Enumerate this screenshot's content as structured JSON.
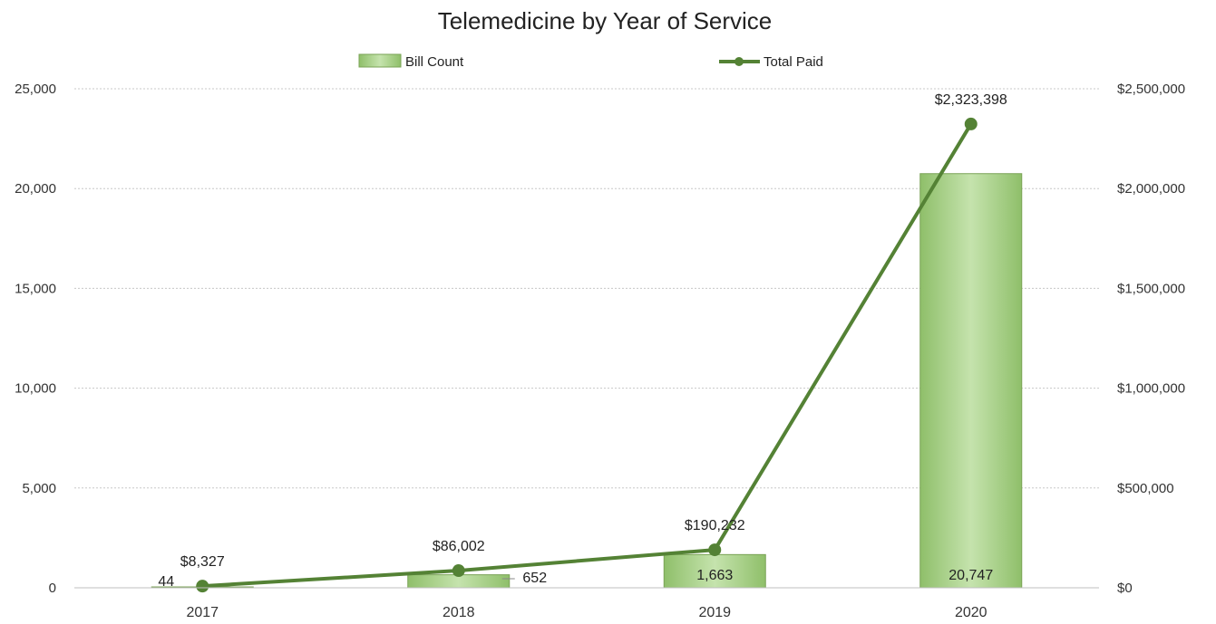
{
  "chart_data": {
    "type": "bar",
    "title": "Telemedicine by Year of Service",
    "categories": [
      "2017",
      "2018",
      "2019",
      "2020"
    ],
    "series": [
      {
        "name": "Bill Count",
        "kind": "bar",
        "axis": "left",
        "values": [
          44,
          652,
          1663,
          20747
        ],
        "labels": [
          "44",
          "652",
          "1,663",
          "20,747"
        ],
        "color": "#a9d18e"
      },
      {
        "name": "Total Paid",
        "kind": "line",
        "axis": "right",
        "values": [
          8327,
          86002,
          190232,
          2323398
        ],
        "labels": [
          "$8,327",
          "$86,002",
          "$190,232",
          "$2,323,398"
        ],
        "color": "#548235"
      }
    ],
    "y_left": {
      "range": [
        0,
        25000
      ],
      "ticks": [
        0,
        5000,
        10000,
        15000,
        20000,
        25000
      ],
      "tick_labels": [
        "0",
        "5,000",
        "10,000",
        "15,000",
        "20,000",
        "25,000"
      ]
    },
    "y_right": {
      "range": [
        0,
        2500000
      ],
      "ticks": [
        0,
        500000,
        1000000,
        1500000,
        2000000,
        2500000
      ],
      "tick_labels": [
        "$0",
        "$500,000",
        "$1,000,000",
        "$1,500,000",
        "$2,000,000",
        "$2,500,000"
      ]
    },
    "grid": true,
    "legend": "top-center"
  }
}
